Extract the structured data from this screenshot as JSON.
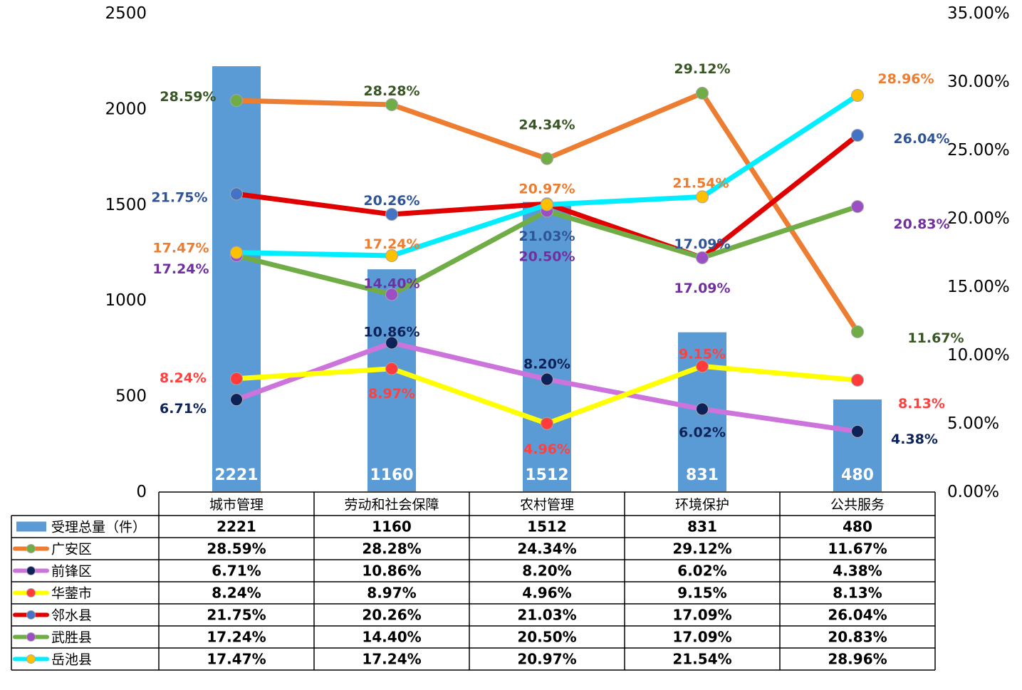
{
  "chart_data": {
    "type": "bar",
    "categories": [
      "城市管理",
      "劳动和社会保障",
      "农村管理",
      "环境保护",
      "公共服务"
    ],
    "bar_series": {
      "name": "受理总量（件）",
      "values": [
        2221,
        1160,
        1512,
        831,
        480
      ],
      "labels": [
        "2221",
        "1160",
        "1512",
        "831",
        "480"
      ],
      "color": "#5b9bd5"
    },
    "y_left": {
      "ticks": [
        "0",
        "500",
        "1000",
        "1500",
        "2000",
        "2500"
      ],
      "min": 0,
      "max": 2500
    },
    "y_right": {
      "ticks": [
        "0.00%",
        "5.00%",
        "10.00%",
        "15.00%",
        "20.00%",
        "25.00%",
        "30.00%",
        "35.00%"
      ],
      "min": 0,
      "max": 35
    },
    "line_series": [
      {
        "name": "广安区",
        "values": [
          28.59,
          28.28,
          24.34,
          29.12,
          11.67
        ],
        "labels": [
          "28.59%",
          "28.28%",
          "24.34%",
          "29.12%",
          "11.67%"
        ],
        "line_color": "#ed7d31",
        "marker_color": "#70ad47",
        "label_color": "#375623"
      },
      {
        "name": "前锋区",
        "values": [
          6.71,
          10.86,
          8.2,
          6.02,
          4.38
        ],
        "labels": [
          "6.71%",
          "10.86%",
          "8.20%",
          "6.02%",
          "4.38%"
        ],
        "line_color": "#cc73dc",
        "marker_color": "#0d2259",
        "label_color": "#0d2259"
      },
      {
        "name": "华蓥市",
        "values": [
          8.24,
          8.97,
          4.96,
          9.15,
          8.13
        ],
        "labels": [
          "8.24%",
          "8.97%",
          "4.96%",
          "9.15%",
          "8.13%"
        ],
        "line_color": "#ffff00",
        "marker_color": "#ff3b3b",
        "label_color": "#ff4040"
      },
      {
        "name": "邻水县",
        "values": [
          21.75,
          20.26,
          21.03,
          17.09,
          26.04
        ],
        "labels": [
          "21.75%",
          "20.26%",
          "21.03%",
          "17.09%",
          "26.04%"
        ],
        "line_color": "#e00000",
        "marker_color": "#4472c4",
        "label_color": "#2f5597"
      },
      {
        "name": "武胜县",
        "values": [
          17.24,
          14.4,
          20.5,
          17.09,
          20.83
        ],
        "labels": [
          "17.24%",
          "14.40%",
          "20.50%",
          "17.09%",
          "20.83%"
        ],
        "line_color": "#70ad47",
        "marker_color": "#9c4fc4",
        "label_color": "#7030a0"
      },
      {
        "name": "岳池县",
        "values": [
          17.47,
          17.24,
          20.97,
          21.54,
          28.96
        ],
        "labels": [
          "17.47%",
          "17.24%",
          "20.97%",
          "21.54%",
          "28.96%"
        ],
        "line_color": "#00eeff",
        "marker_color": "#ffc000",
        "label_color": "#ed7d31"
      }
    ]
  }
}
